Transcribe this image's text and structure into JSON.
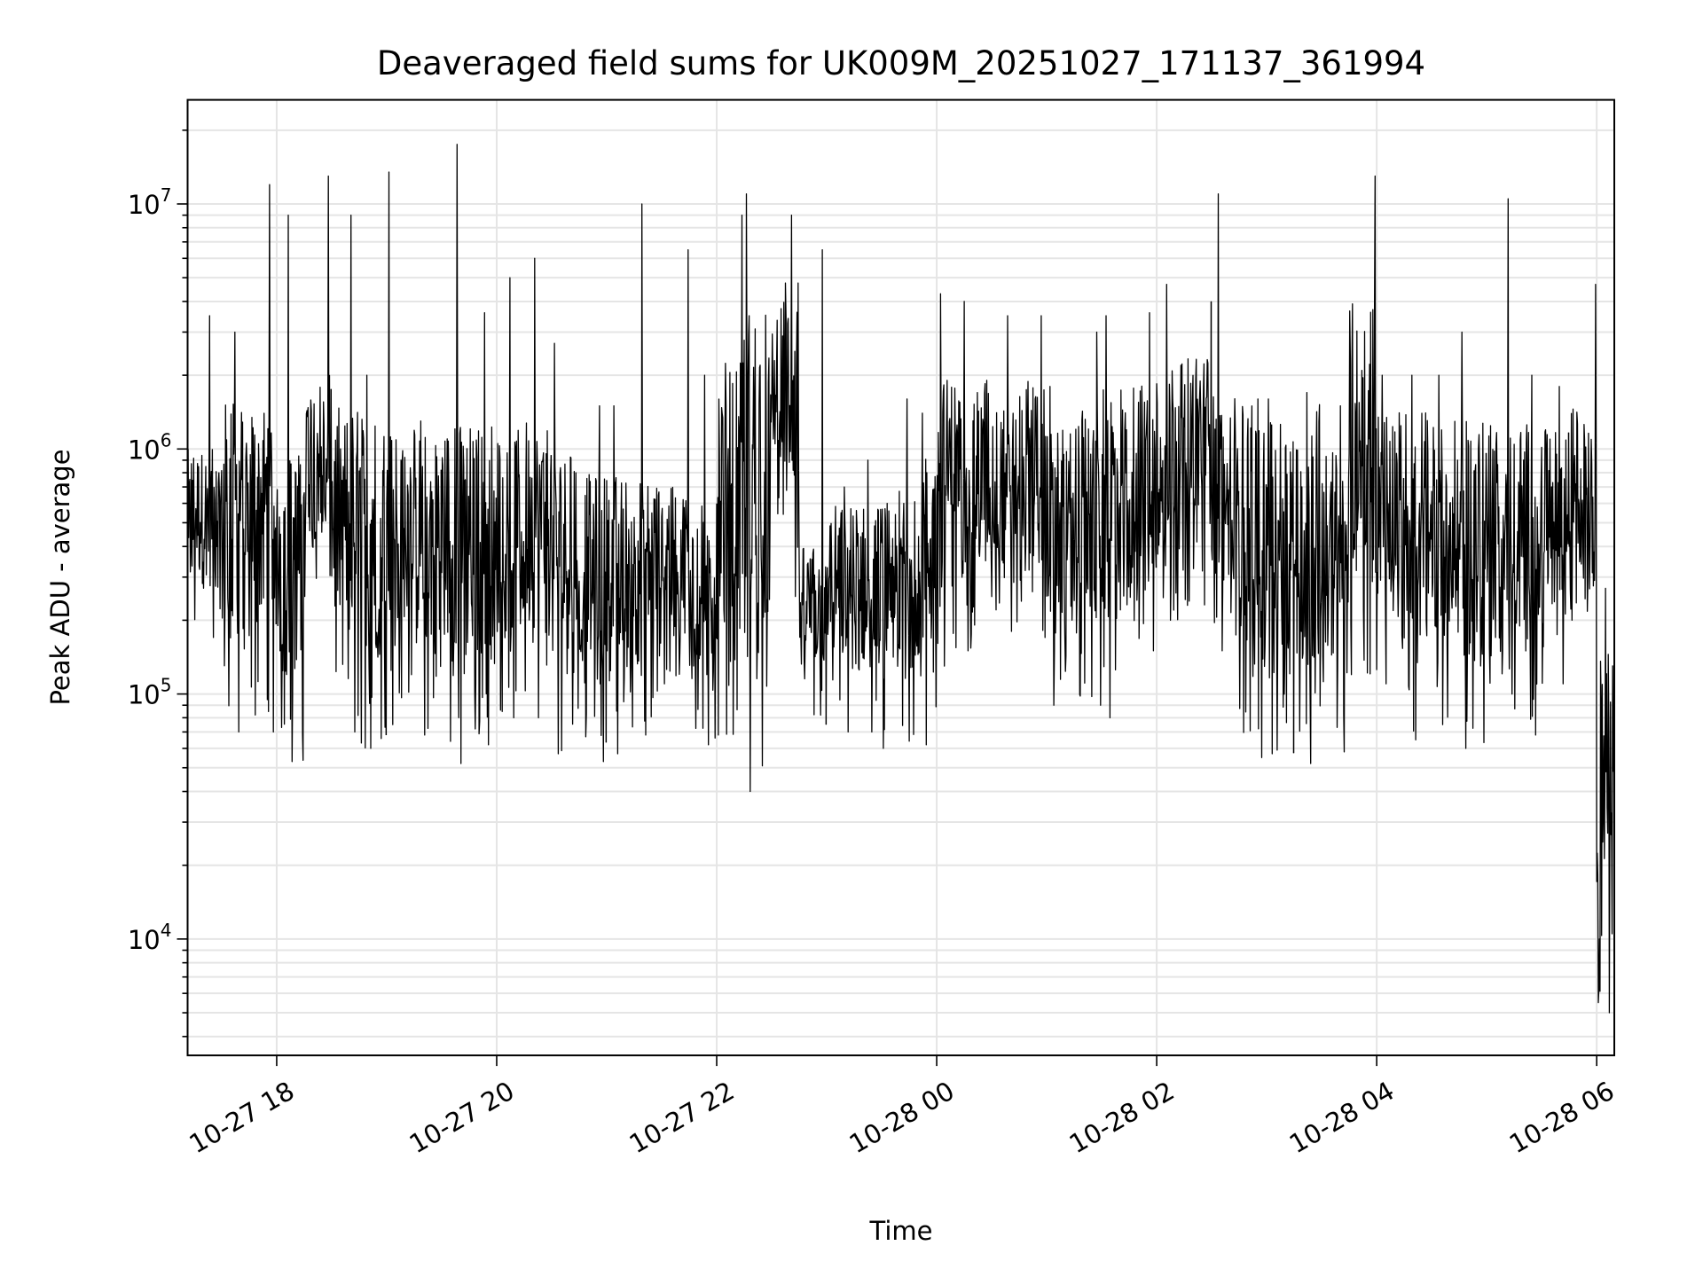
{
  "chart_data": {
    "type": "line",
    "title": "Deaveraged field sums for UK009M_20251027_171137_361994",
    "xlabel": "Time",
    "ylabel": "Peak ADU - average",
    "yscale": "log",
    "ylim": [
      3350,
      26600000
    ],
    "xlim_hours": [
      -6.81,
      6.16
    ],
    "x_ticks": [
      {
        "hours": -6,
        "label": "10-27 18"
      },
      {
        "hours": -4,
        "label": "10-27 20"
      },
      {
        "hours": -2,
        "label": "10-27 22"
      },
      {
        "hours": 0,
        "label": "10-28 00"
      },
      {
        "hours": 2,
        "label": "10-28 02"
      },
      {
        "hours": 4,
        "label": "10-28 04"
      },
      {
        "hours": 6,
        "label": "10-28 06"
      }
    ],
    "y_ticks": [
      {
        "value": 10000,
        "base": "10",
        "exp": "4"
      },
      {
        "value": 100000,
        "base": "10",
        "exp": "5"
      },
      {
        "value": 1000000,
        "base": "10",
        "exp": "6"
      },
      {
        "value": 10000000,
        "base": "10",
        "exp": "7"
      }
    ],
    "grid": true,
    "line_color": "#000000",
    "grid_color": "#e5e5e5",
    "series_note_hours_from_midnight": "bins of 15 min: [start_hours, low, typical_high, spike_max]",
    "series": [
      [
        -6.81,
        170000,
        1000000,
        3500000
      ],
      [
        -6.5,
        70000,
        1600000,
        3000000
      ],
      [
        -6.25,
        70000,
        1600000,
        12000000
      ],
      [
        -6.0,
        53000,
        1000000,
        9000000
      ],
      [
        -5.75,
        250000,
        2000000,
        13000000
      ],
      [
        -5.5,
        70000,
        1500000,
        9000000
      ],
      [
        -5.25,
        60000,
        1400000,
        2000000
      ],
      [
        -5.0,
        75000,
        1300000,
        13500000
      ],
      [
        -4.75,
        68000,
        1200000,
        1300000
      ],
      [
        -4.5,
        52000,
        1300000,
        17500000
      ],
      [
        -4.25,
        62000,
        1300000,
        3600000
      ],
      [
        -4.0,
        80000,
        1200000,
        5000000
      ],
      [
        -3.75,
        80000,
        1300000,
        6000000
      ],
      [
        -3.5,
        57000,
        1000000,
        2700000
      ],
      [
        -3.25,
        53000,
        800000,
        1500000
      ],
      [
        -3.0,
        57000,
        800000,
        1500000
      ],
      [
        -2.75,
        68000,
        800000,
        10000000
      ],
      [
        -2.5,
        110000,
        700000,
        6500000
      ],
      [
        -2.25,
        62000,
        600000,
        2000000
      ],
      [
        -2.0,
        68000,
        2500000,
        9000000
      ],
      [
        -1.75,
        40000,
        4000000,
        11000000
      ],
      [
        -1.5,
        250000,
        5000000,
        9000000
      ],
      [
        -1.25,
        75000,
        400000,
        6500000
      ],
      [
        -1.0,
        70000,
        600000,
        700000
      ],
      [
        -0.75,
        70000,
        600000,
        900000
      ],
      [
        -0.5,
        60000,
        700000,
        1600000
      ],
      [
        -0.25,
        62000,
        1000000,
        1400000
      ],
      [
        0.0,
        130000,
        2000000,
        4300000
      ],
      [
        0.25,
        150000,
        2000000,
        4000000
      ],
      [
        0.5,
        180000,
        1500000,
        3500000
      ],
      [
        0.75,
        170000,
        2000000,
        3500000
      ],
      [
        1.0,
        90000,
        1200000,
        1800000
      ],
      [
        1.25,
        90000,
        1500000,
        3000000
      ],
      [
        1.5,
        80000,
        2000000,
        3500000
      ],
      [
        1.75,
        150000,
        2000000,
        3600000
      ],
      [
        2.0,
        200000,
        2500000,
        4700000
      ],
      [
        2.25,
        230000,
        2500000,
        4000000
      ],
      [
        2.5,
        150000,
        1700000,
        11000000
      ],
      [
        2.75,
        55000,
        1500000,
        1600000
      ],
      [
        3.0,
        57000,
        1400000,
        1600000
      ],
      [
        3.25,
        52000,
        1600000,
        1700000
      ],
      [
        3.5,
        58000,
        1000000,
        1500000
      ],
      [
        3.75,
        120000,
        4000000,
        13000000
      ],
      [
        4.0,
        110000,
        1500000,
        2000000
      ],
      [
        4.25,
        65000,
        1500000,
        2000000
      ],
      [
        4.5,
        75000,
        1300000,
        2000000
      ],
      [
        4.75,
        60000,
        1300000,
        3000000
      ],
      [
        5.0,
        100000,
        1300000,
        10500000
      ],
      [
        5.25,
        68000,
        1300000,
        2000000
      ],
      [
        5.5,
        110000,
        1200000,
        1800000
      ],
      [
        5.75,
        200000,
        1500000,
        4700000
      ],
      [
        6.0,
        5000,
        150000,
        270000
      ]
    ]
  }
}
